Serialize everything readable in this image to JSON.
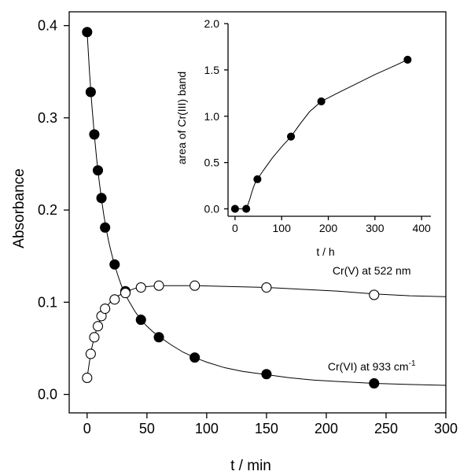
{
  "chart_data": [
    {
      "type": "scatter",
      "xlabel": "t / min",
      "ylabel": "Absorbance",
      "xlim": [
        -15,
        300
      ],
      "ylim": [
        -0.02,
        0.415
      ],
      "xticks": [
        0,
        50,
        100,
        150,
        200,
        250,
        300
      ],
      "yticks": [
        0.0,
        0.1,
        0.2,
        0.3,
        0.4
      ],
      "xtick_labels": [
        "0",
        "50",
        "100",
        "150",
        "200",
        "250",
        "300"
      ],
      "ytick_labels": [
        "0.0",
        "0.1",
        "0.2",
        "0.3",
        "0.4"
      ],
      "grid": false,
      "series": [
        {
          "name": "Cr(VI) at 933 cm",
          "name_superscript": "-1",
          "marker": "filled-circle",
          "color": "#000000",
          "x": [
            0,
            3,
            6,
            9,
            12,
            15,
            23,
            32,
            45,
            60,
            90,
            150,
            240
          ],
          "y": [
            0.393,
            0.328,
            0.282,
            0.243,
            0.213,
            0.181,
            0.141,
            0.112,
            0.081,
            0.062,
            0.04,
            0.022,
            0.012
          ],
          "curve": {
            "x": [
              0,
              2,
              4,
              6,
              8,
              10,
              12,
              14,
              16,
              18,
              20,
              23,
              26,
              29,
              32,
              35,
              40,
              45,
              50,
              55,
              60,
              70,
              80,
              90,
              100,
              115,
              130,
              150,
              170,
              190,
              210,
              240,
              270,
              300
            ],
            "y": [
              0.393,
              0.349,
              0.313,
              0.282,
              0.255,
              0.232,
              0.212,
              0.194,
              0.179,
              0.166,
              0.155,
              0.14,
              0.128,
              0.117,
              0.108,
              0.101,
              0.09,
              0.081,
              0.074,
              0.068,
              0.063,
              0.054,
              0.046,
              0.04,
              0.035,
              0.029,
              0.025,
              0.0215,
              0.018,
              0.0155,
              0.014,
              0.012,
              0.0108,
              0.0098
            ]
          }
        },
        {
          "name": "Cr(V) at 522 nm",
          "marker": "open-circle",
          "color": "#000000",
          "x": [
            0,
            3,
            6,
            9,
            12,
            15,
            23,
            32,
            45,
            60,
            90,
            150,
            240
          ],
          "y": [
            0.018,
            0.044,
            0.062,
            0.074,
            0.085,
            0.093,
            0.103,
            0.11,
            0.116,
            0.118,
            0.118,
            0.116,
            0.108
          ],
          "curve": {
            "x": [
              0,
              2,
              4,
              6,
              8,
              10,
              12,
              14,
              16,
              18,
              20,
              23,
              26,
              29,
              32,
              36,
              40,
              45,
              50,
              60,
              75,
              90,
              120,
              150,
              180,
              210,
              240,
              270,
              300
            ],
            "y": [
              0.018,
              0.036,
              0.051,
              0.062,
              0.071,
              0.078,
              0.085,
              0.09,
              0.094,
              0.098,
              0.101,
              0.104,
              0.107,
              0.109,
              0.111,
              0.113,
              0.115,
              0.116,
              0.117,
              0.118,
              0.118,
              0.118,
              0.117,
              0.116,
              0.114,
              0.112,
              0.109,
              0.107,
              0.106
            ]
          }
        }
      ],
      "annotations": [
        {
          "text": "Cr(V) at 522 nm",
          "x": 238,
          "y": 0.13
        },
        {
          "text": "Cr(VI) at 933 cm",
          "superscript": "-1",
          "x": 238,
          "y": 0.026
        }
      ]
    },
    {
      "type": "scatter",
      "placement": "inset-top-right",
      "xlabel": "t / h",
      "ylabel": "area of Cr(III) band",
      "xlim": [
        -15,
        420
      ],
      "ylim": [
        -0.08,
        2.0
      ],
      "xticks": [
        0,
        100,
        200,
        300,
        400
      ],
      "yticks": [
        0.0,
        0.5,
        1.0,
        1.5,
        2.0
      ],
      "xtick_labels": [
        "0",
        "100",
        "200",
        "300",
        "400"
      ],
      "ytick_labels": [
        "0.0",
        "0.5",
        "1.0",
        "1.5",
        "2.0"
      ],
      "grid": false,
      "series": [
        {
          "marker": "filled-circle",
          "color": "#000000",
          "x": [
            0,
            24,
            48,
            120,
            185,
            370
          ],
          "y": [
            0.0,
            0.0,
            0.32,
            0.78,
            1.16,
            1.61
          ],
          "curve": {
            "x": [
              0,
              20,
              24,
              28,
              32,
              36,
              40,
              44,
              48,
              60,
              80,
              100,
              120,
              140,
              160,
              185,
              220,
              260,
              300,
              340,
              370
            ],
            "y": [
              0.0,
              0.0,
              0.0,
              0.05,
              0.11,
              0.18,
              0.24,
              0.29,
              0.32,
              0.41,
              0.55,
              0.67,
              0.78,
              0.92,
              1.05,
              1.16,
              1.25,
              1.35,
              1.45,
              1.54,
              1.61
            ]
          }
        }
      ]
    }
  ]
}
